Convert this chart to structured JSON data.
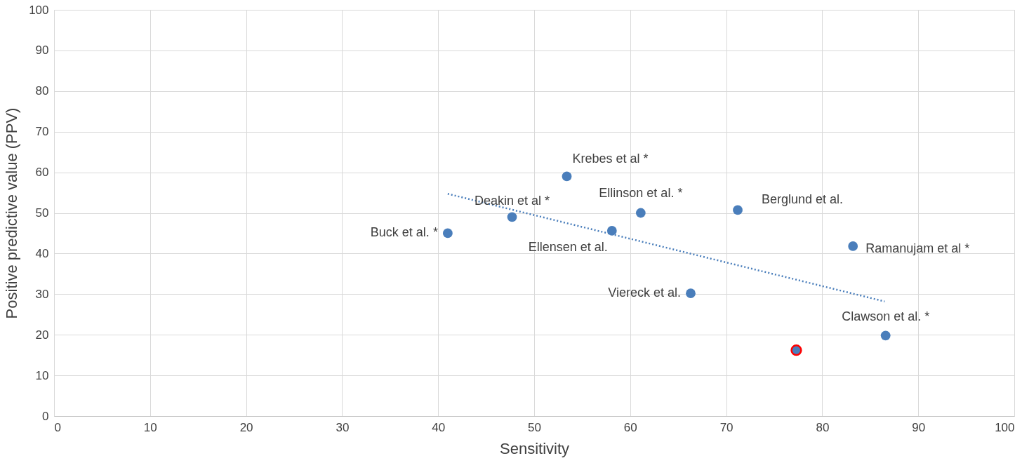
{
  "chart_data": {
    "type": "scatter",
    "xlabel": "Sensitivity",
    "ylabel": "Positive predictive value (PPV)",
    "series": [
      {
        "color": "#4a7ebb",
        "marker": "circle",
        "x": [
          41.0,
          47.7,
          53.4,
          58.1,
          61.1,
          66.3,
          71.2,
          77.3,
          83.2,
          86.6
        ],
        "values": [
          45,
          49,
          59,
          45.6,
          50,
          30.2,
          50.7,
          16.2,
          41.8,
          19.8
        ]
      },
      {
        "color": "#ff0000",
        "marker": "circle",
        "x": [
          77.3
        ],
        "values": [
          16.2
        ]
      },
      {
        "type": "line",
        "color": "#4a7ebb",
        "line_style": "dotted",
        "x": [
          41.0,
          86.5
        ],
        "values": [
          54.7,
          28.2
        ]
      }
    ],
    "annotations": [
      {
        "text": "Buck et al. *",
        "x": 41.0,
        "y": 45
      },
      {
        "text": "Deakin et al *",
        "x": 47.7,
        "y": 49
      },
      {
        "text": "Krebes et al *",
        "x": 53.4,
        "y": 59
      },
      {
        "text": "Ellensen et al.",
        "x": 58.1,
        "y": 45.6
      },
      {
        "text": "Ellinson et al. *",
        "x": 61.1,
        "y": 50
      },
      {
        "text": "Viereck et al.",
        "x": 66.3,
        "y": 30.2
      },
      {
        "text": "Berglund et al.",
        "x": 71.2,
        "y": 50.7
      },
      {
        "text": "Ramanujam et al *",
        "x": 83.2,
        "y": 41.8
      },
      {
        "text": "Clawson et al. *",
        "x": 86.6,
        "y": 19.8
      }
    ],
    "xlim": [
      0,
      100
    ],
    "xticks": [
      0,
      10,
      20,
      30,
      40,
      50,
      60,
      70,
      80,
      90,
      100
    ],
    "ylim": [
      0,
      100
    ],
    "yticks": [
      0,
      10,
      20,
      30,
      40,
      50,
      60,
      70,
      80,
      90,
      100
    ],
    "grid": true
  }
}
